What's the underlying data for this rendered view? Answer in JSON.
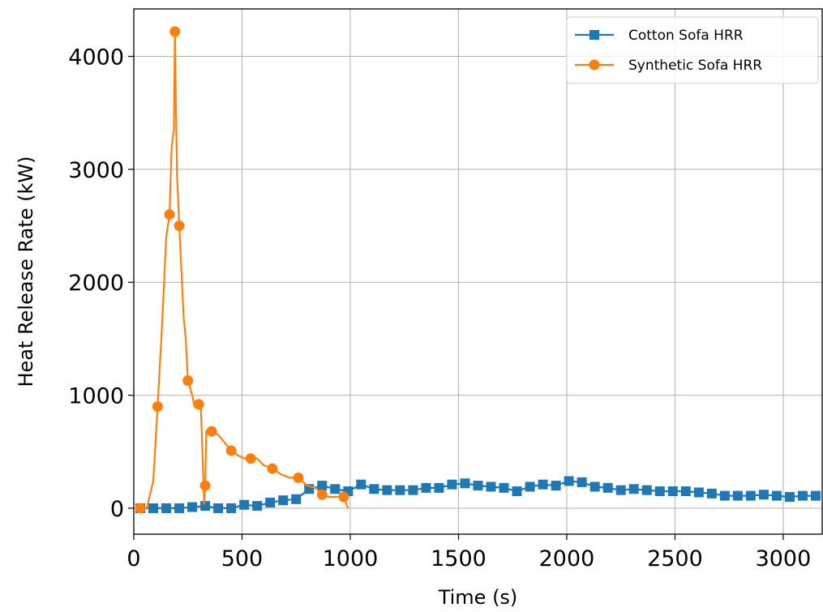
{
  "chart_data": {
    "type": "line",
    "title": "",
    "xlabel": "Time (s)",
    "ylabel": "Heat Release Rate (kW)",
    "xlim": [
      0,
      3180
    ],
    "ylim": [
      -230,
      4420
    ],
    "xticks": [
      "0",
      "500",
      "1000",
      "1500",
      "2000",
      "2500",
      "3000"
    ],
    "yticks": [
      "0",
      "1000",
      "2000",
      "3000",
      "4000"
    ],
    "grid": true,
    "legend_position": "top-right",
    "colors": {
      "cotton": "#1f77b4",
      "synthetic": "#ff7f0e",
      "grid": "#b0b0b0"
    },
    "series": [
      {
        "name": "Cotton Sofa HRR",
        "marker": "square",
        "x": [
          30,
          90,
          150,
          210,
          270,
          330,
          390,
          450,
          510,
          570,
          630,
          690,
          750,
          810,
          870,
          930,
          990,
          1050,
          1110,
          1170,
          1230,
          1290,
          1350,
          1410,
          1470,
          1530,
          1590,
          1650,
          1710,
          1770,
          1830,
          1890,
          1950,
          2010,
          2070,
          2130,
          2190,
          2250,
          2310,
          2370,
          2430,
          2490,
          2550,
          2610,
          2670,
          2730,
          2790,
          2850,
          2910,
          2970,
          3030,
          3090,
          3150
        ],
        "y": [
          0,
          0,
          0,
          0,
          10,
          20,
          0,
          0,
          30,
          20,
          50,
          70,
          80,
          170,
          200,
          170,
          150,
          210,
          170,
          160,
          160,
          160,
          180,
          180,
          210,
          220,
          200,
          190,
          180,
          150,
          190,
          210,
          200,
          240,
          230,
          190,
          180,
          160,
          170,
          160,
          150,
          150,
          150,
          140,
          130,
          110,
          110,
          110,
          120,
          110,
          100,
          110,
          110
        ]
      },
      {
        "name": "Synthetic Sofa HRR",
        "marker": "circle",
        "x": [
          30,
          60,
          90,
          110,
          130,
          150,
          165,
          175,
          185,
          190,
          195,
          200,
          210,
          230,
          240,
          250,
          270,
          280,
          300,
          310,
          325,
          330,
          335,
          345,
          360,
          390,
          420,
          450,
          480,
          510,
          540,
          570,
          600,
          640,
          680,
          720,
          760,
          800,
          840,
          870,
          900,
          940,
          970,
          985,
          990
        ],
        "y": [
          0,
          0,
          240,
          900,
          1600,
          2400,
          2600,
          3200,
          3350,
          4220,
          3500,
          2930,
          2500,
          1700,
          1500,
          1130,
          1000,
          900,
          920,
          880,
          40,
          200,
          680,
          700,
          680,
          650,
          580,
          510,
          470,
          440,
          440,
          440,
          380,
          350,
          300,
          270,
          270,
          200,
          180,
          120,
          100,
          100,
          100,
          20,
          0
        ]
      }
    ]
  }
}
